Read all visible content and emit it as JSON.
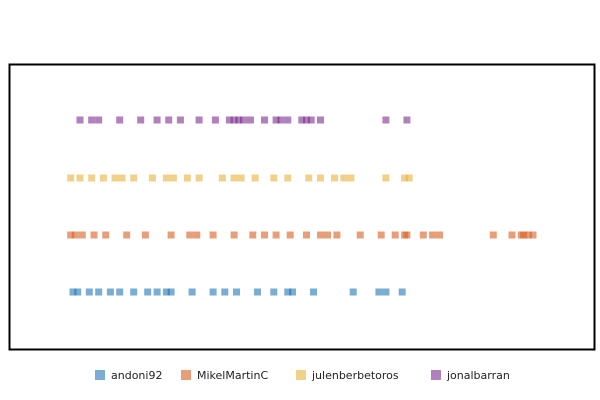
{
  "chart_data": {
    "type": "scatter",
    "title": "",
    "xlabel": "",
    "ylabel": "",
    "xlim": [
      0,
      100
    ],
    "axes_visible": false,
    "grid": false,
    "legend_position": "bottom",
    "marker": "square",
    "marker_opacity": 0.6,
    "series": [
      {
        "name": "andoni92",
        "color": "#1f77b4",
        "x": [
          1.5,
          2.5,
          5.0,
          7.0,
          9.5,
          11.5,
          14.5,
          17.5,
          19.5,
          21.5,
          22.5,
          27.0,
          31.5,
          34.0,
          36.5,
          41.0,
          44.5,
          47.5,
          48.5,
          53.0,
          61.5,
          67.0,
          68.5,
          72.0
        ]
      },
      {
        "name": "MikelMartinC",
        "color": "#d95f1f",
        "x": [
          1.0,
          2.0,
          3.5,
          6.0,
          8.5,
          13.0,
          17.0,
          22.5,
          26.5,
          28.0,
          31.5,
          36.0,
          40.0,
          42.5,
          45.0,
          48.0,
          51.5,
          54.5,
          56.0,
          58.0,
          63.0,
          67.5,
          70.5,
          72.5,
          73.0,
          76.5,
          78.5,
          80.0,
          91.5,
          95.5,
          97.5,
          98.0,
          99.0,
          100.0
        ]
      },
      {
        "name": "julenberbetoros",
        "color": "#e8b23a",
        "x": [
          1.0,
          3.0,
          5.5,
          8.0,
          10.5,
          12.0,
          14.5,
          18.5,
          21.5,
          23.0,
          26.0,
          28.5,
          33.5,
          36.0,
          37.5,
          40.5,
          44.5,
          47.5,
          52.0,
          54.5,
          57.5,
          59.5,
          61.0,
          68.5,
          72.5,
          73.5
        ]
      },
      {
        "name": "jonalbarran",
        "color": "#7b2d8e",
        "x": [
          3.0,
          5.5,
          7.0,
          11.5,
          16.0,
          19.5,
          22.0,
          24.5,
          28.5,
          32.0,
          35.0,
          36.0,
          37.0,
          38.0,
          39.5,
          42.5,
          45.0,
          46.0,
          47.5,
          50.5,
          51.5,
          52.5,
          54.5,
          68.5,
          73.0
        ]
      }
    ]
  }
}
